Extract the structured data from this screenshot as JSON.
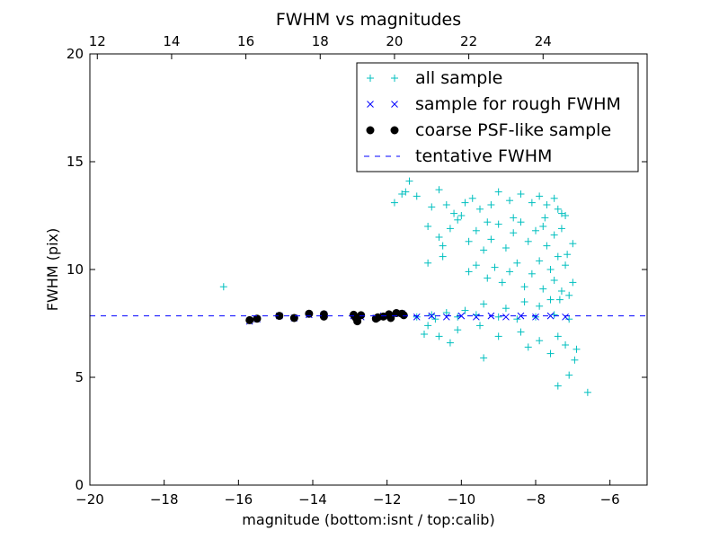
{
  "chart_data": {
    "type": "scatter",
    "title": "FWHM vs magnitudes",
    "xlabel": "magnitude (bottom:isnt / top:calib)",
    "ylabel": "FWHM (pix)",
    "xlim": [
      -20,
      -5
    ],
    "ylim": [
      0,
      20
    ],
    "xticks": [
      -20,
      -18,
      -16,
      -14,
      -12,
      -10,
      -8,
      -6
    ],
    "xtick_labels": [
      "−20",
      "−18",
      "−16",
      "−14",
      "−12",
      "−10",
      "−8",
      "−6"
    ],
    "yticks": [
      0,
      5,
      10,
      15,
      20
    ],
    "ytick_labels": [
      "0",
      "5",
      "10",
      "15",
      "20"
    ],
    "top_axis": {
      "ticks": [
        12,
        14,
        16,
        18,
        20,
        22,
        24
      ],
      "tick_labels": [
        "12",
        "14",
        "16",
        "18",
        "20",
        "22",
        "24"
      ],
      "offset": 31.8
    },
    "legend_position": "upper-right",
    "series": [
      {
        "name": "all sample",
        "marker": "plus",
        "color": "#00bfbf",
        "points": [
          [
            -16.4,
            9.2
          ],
          [
            -11.6,
            13.5
          ],
          [
            -11.8,
            13.1
          ],
          [
            -11.5,
            13.6
          ],
          [
            -11.4,
            14.1
          ],
          [
            -11.2,
            13.4
          ],
          [
            -10.8,
            12.9
          ],
          [
            -10.6,
            13.7
          ],
          [
            -10.4,
            13.0
          ],
          [
            -10.2,
            12.6
          ],
          [
            -9.9,
            13.1
          ],
          [
            -9.7,
            13.3
          ],
          [
            -9.5,
            12.8
          ],
          [
            -9.2,
            13.0
          ],
          [
            -9.0,
            13.6
          ],
          [
            -8.7,
            13.2
          ],
          [
            -8.4,
            13.5
          ],
          [
            -8.1,
            13.1
          ],
          [
            -7.9,
            13.4
          ],
          [
            -7.7,
            13.0
          ],
          [
            -7.4,
            12.8
          ],
          [
            -7.2,
            12.5
          ],
          [
            -10.6,
            11.5
          ],
          [
            -10.5,
            11.1
          ],
          [
            -10.3,
            11.9
          ],
          [
            -10.1,
            12.3
          ],
          [
            -9.8,
            11.3
          ],
          [
            -9.6,
            11.8
          ],
          [
            -9.4,
            10.9
          ],
          [
            -9.2,
            11.4
          ],
          [
            -9.0,
            12.1
          ],
          [
            -8.8,
            11.0
          ],
          [
            -8.6,
            11.7
          ],
          [
            -8.4,
            12.2
          ],
          [
            -8.2,
            11.3
          ],
          [
            -8.0,
            11.8
          ],
          [
            -7.8,
            12.0
          ],
          [
            -7.7,
            11.1
          ],
          [
            -7.5,
            11.6
          ],
          [
            -7.3,
            11.9
          ],
          [
            -10.9,
            10.3
          ],
          [
            -10.5,
            10.6
          ],
          [
            -9.8,
            9.9
          ],
          [
            -9.6,
            10.2
          ],
          [
            -9.3,
            9.6
          ],
          [
            -9.1,
            10.1
          ],
          [
            -8.9,
            9.4
          ],
          [
            -8.7,
            9.9
          ],
          [
            -8.5,
            10.3
          ],
          [
            -8.3,
            9.2
          ],
          [
            -8.1,
            9.8
          ],
          [
            -7.9,
            10.4
          ],
          [
            -7.8,
            9.1
          ],
          [
            -7.6,
            10.0
          ],
          [
            -7.5,
            9.5
          ],
          [
            -7.4,
            10.6
          ],
          [
            -7.3,
            9.0
          ],
          [
            -7.2,
            10.2
          ],
          [
            -7.1,
            8.8
          ],
          [
            -7.0,
            9.4
          ],
          [
            -7.6,
            8.6
          ],
          [
            -7.9,
            8.3
          ],
          [
            -8.3,
            8.5
          ],
          [
            -8.8,
            8.2
          ],
          [
            -9.4,
            8.4
          ],
          [
            -9.9,
            8.1
          ],
          [
            -10.4,
            8.0
          ],
          [
            -10.8,
            7.9
          ],
          [
            -11.2,
            7.8
          ],
          [
            -10.7,
            7.7
          ],
          [
            -10.1,
            7.8
          ],
          [
            -9.6,
            7.9
          ],
          [
            -9.0,
            7.8
          ],
          [
            -8.5,
            7.7
          ],
          [
            -8.0,
            7.8
          ],
          [
            -7.5,
            7.9
          ],
          [
            -7.1,
            7.7
          ],
          [
            -10.9,
            7.4
          ],
          [
            -10.6,
            6.9
          ],
          [
            -10.1,
            7.2
          ],
          [
            -9.5,
            7.4
          ],
          [
            -9.0,
            6.9
          ],
          [
            -8.4,
            7.1
          ],
          [
            -7.9,
            6.7
          ],
          [
            -7.4,
            6.9
          ],
          [
            -7.2,
            6.5
          ],
          [
            -6.9,
            6.3
          ],
          [
            -6.95,
            5.8
          ],
          [
            -7.1,
            5.1
          ],
          [
            -7.4,
            4.6
          ],
          [
            -6.6,
            4.3
          ],
          [
            -9.4,
            5.9
          ],
          [
            -7.6,
            6.1
          ],
          [
            -8.2,
            6.4
          ],
          [
            -11.0,
            7.0
          ],
          [
            -10.3,
            6.6
          ],
          [
            -7.3,
            12.6
          ],
          [
            -7.5,
            13.3
          ],
          [
            -8.6,
            12.4
          ],
          [
            -9.3,
            12.2
          ],
          [
            -10.0,
            12.5
          ],
          [
            -10.9,
            12.0
          ],
          [
            -7.0,
            11.2
          ],
          [
            -7.15,
            10.7
          ],
          [
            -7.35,
            8.6
          ],
          [
            -7.75,
            12.4
          ]
        ]
      },
      {
        "name": "sample for rough FWHM",
        "marker": "x",
        "color": "#0000ff",
        "points": [
          [
            -15.7,
            7.6
          ],
          [
            -15.5,
            7.7
          ],
          [
            -14.9,
            7.85
          ],
          [
            -14.5,
            7.75
          ],
          [
            -14.1,
            7.9
          ],
          [
            -13.7,
            7.9
          ],
          [
            -12.9,
            7.85
          ],
          [
            -12.7,
            7.8
          ],
          [
            -12.3,
            7.75
          ],
          [
            -12.1,
            7.85
          ],
          [
            -11.9,
            7.9
          ],
          [
            -11.6,
            7.95
          ],
          [
            -11.2,
            7.8
          ],
          [
            -10.8,
            7.85
          ],
          [
            -10.4,
            7.8
          ],
          [
            -10.0,
            7.85
          ],
          [
            -9.6,
            7.8
          ],
          [
            -9.2,
            7.85
          ],
          [
            -8.8,
            7.8
          ],
          [
            -8.4,
            7.85
          ],
          [
            -8.0,
            7.8
          ],
          [
            -7.6,
            7.85
          ],
          [
            -7.2,
            7.8
          ]
        ]
      },
      {
        "name": "coarse PSF-like sample",
        "marker": "circle",
        "color": "#000000",
        "points": [
          [
            -15.7,
            7.65
          ],
          [
            -15.5,
            7.72
          ],
          [
            -14.9,
            7.85
          ],
          [
            -14.5,
            7.75
          ],
          [
            -14.1,
            7.95
          ],
          [
            -13.7,
            7.92
          ],
          [
            -13.7,
            7.82
          ],
          [
            -12.9,
            7.9
          ],
          [
            -12.85,
            7.78
          ],
          [
            -12.8,
            7.6
          ],
          [
            -12.7,
            7.88
          ],
          [
            -12.3,
            7.72
          ],
          [
            -12.25,
            7.78
          ],
          [
            -12.1,
            7.82
          ],
          [
            -11.95,
            7.92
          ],
          [
            -11.9,
            7.75
          ],
          [
            -11.75,
            7.98
          ],
          [
            -11.6,
            7.95
          ],
          [
            -11.55,
            7.88
          ]
        ]
      },
      {
        "name": "tentative FWHM",
        "marker": "dashed-line",
        "color": "#0000ff",
        "y": 7.85
      }
    ]
  }
}
